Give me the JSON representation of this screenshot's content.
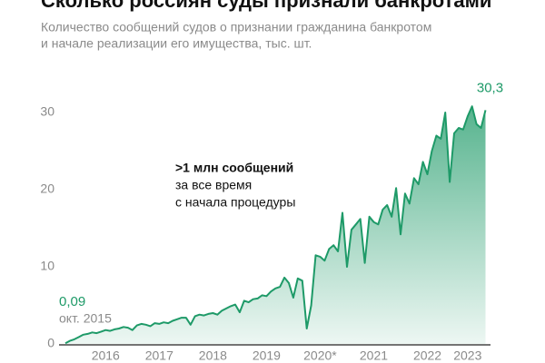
{
  "chart_data": {
    "type": "area",
    "title": "Сколько россиян суды признали банкротами",
    "subtitle": [
      "Количество сообщений судов о признании гражданина банкротом",
      "и начале реализации его имущества, тыс. шт."
    ],
    "categories": [
      null,
      null,
      null,
      null,
      null,
      null,
      null,
      null,
      null,
      "2016",
      null,
      null,
      null,
      null,
      null,
      null,
      null,
      null,
      null,
      null,
      null,
      "2017",
      null,
      null,
      null,
      null,
      null,
      null,
      null,
      null,
      null,
      null,
      null,
      "2018",
      null,
      null,
      null,
      null,
      null,
      null,
      null,
      null,
      null,
      null,
      null,
      "2019",
      null,
      null,
      null,
      null,
      null,
      null,
      null,
      null,
      null,
      null,
      null,
      "2020*",
      null,
      null,
      null,
      null,
      null,
      null,
      null,
      null,
      null,
      null,
      null,
      "2021",
      null,
      null,
      null,
      null,
      null,
      null,
      null,
      null,
      null,
      null,
      null,
      "2022",
      null,
      null,
      null,
      null,
      null,
      null,
      null,
      null,
      "2023",
      null,
      null,
      null,
      null
    ],
    "values": [
      0.09,
      0.4,
      0.6,
      0.9,
      1.2,
      1.3,
      1.5,
      1.4,
      1.6,
      1.8,
      1.7,
      1.9,
      2.0,
      2.2,
      2.1,
      1.8,
      2.4,
      2.6,
      2.5,
      2.3,
      2.7,
      2.6,
      2.8,
      2.7,
      3.0,
      3.2,
      3.4,
      3.4,
      2.5,
      3.6,
      3.8,
      3.7,
      3.9,
      4.0,
      3.8,
      4.3,
      4.6,
      4.9,
      5.1,
      4.1,
      5.6,
      5.4,
      5.8,
      5.9,
      6.3,
      6.2,
      6.8,
      7.2,
      7.4,
      8.6,
      7.9,
      6.0,
      8.5,
      8.2,
      2.0,
      5.0,
      11.5,
      11.3,
      10.8,
      12.3,
      12.8,
      12.0,
      17.0,
      10.0,
      14.8,
      15.5,
      16.2,
      10.5,
      16.5,
      15.8,
      15.5,
      17.4,
      18.0,
      16.5,
      20.2,
      14.2,
      19.5,
      18.2,
      21.5,
      20.7,
      23.6,
      22.0,
      25.0,
      27.0,
      26.6,
      30.0,
      21.0,
      27.3,
      28.0,
      27.8,
      29.5,
      30.8,
      28.5,
      28.0,
      30.3
    ],
    "value_labels": [
      "0,09",
      null,
      null,
      null,
      null,
      null,
      null,
      null,
      null,
      null,
      null,
      null,
      null,
      null,
      null,
      null,
      null,
      null,
      null,
      null,
      null,
      null,
      null,
      null,
      null,
      null,
      null,
      null,
      null,
      null,
      null,
      null,
      null,
      null,
      null,
      null,
      null,
      null,
      null,
      null,
      null,
      null,
      null,
      null,
      null,
      null,
      null,
      null,
      null,
      null,
      null,
      null,
      null,
      null,
      null,
      null,
      null,
      null,
      null,
      null,
      null,
      null,
      null,
      null,
      null,
      null,
      null,
      null,
      null,
      null,
      null,
      null,
      null,
      null,
      null,
      null,
      null,
      null,
      null,
      null,
      null,
      null,
      null,
      null,
      null,
      null,
      null,
      null,
      null,
      null,
      null,
      null,
      null,
      null,
      "30,3"
    ],
    "start_date_label": "окт. 2015",
    "annotation": [
      ">1 млн сообщений",
      "за все время",
      "с начала процедуры"
    ],
    "color": "#1e9a68",
    "ylim": [
      0,
      34
    ],
    "yticks": [
      0,
      10,
      20,
      30
    ],
    "grid": false
  }
}
